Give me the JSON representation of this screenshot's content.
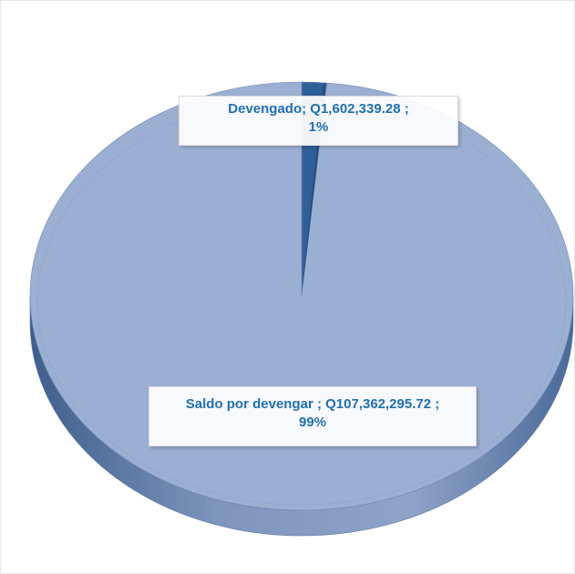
{
  "chart_data": {
    "type": "pie",
    "style": "3d",
    "title": "",
    "legend": "none",
    "slices": [
      {
        "label": "Devengado",
        "value": 1602339.28,
        "value_text": "Q1,602,339.28",
        "percent": 1,
        "percent_text": "1%",
        "color": "#2f5f98"
      },
      {
        "label": "Saldo por devengar",
        "value": 107362295.72,
        "value_text": "Q107,362,295.72",
        "percent": 99,
        "percent_text": "99%",
        "color": "#9bafd3"
      }
    ],
    "data_labels": [
      {
        "line1": "Devengado;  Q1,602,339.28 ;",
        "line2": "1%"
      },
      {
        "line1": "Saldo por devengar ;  Q107,362,295.72 ;",
        "line2": "99%"
      }
    ]
  }
}
